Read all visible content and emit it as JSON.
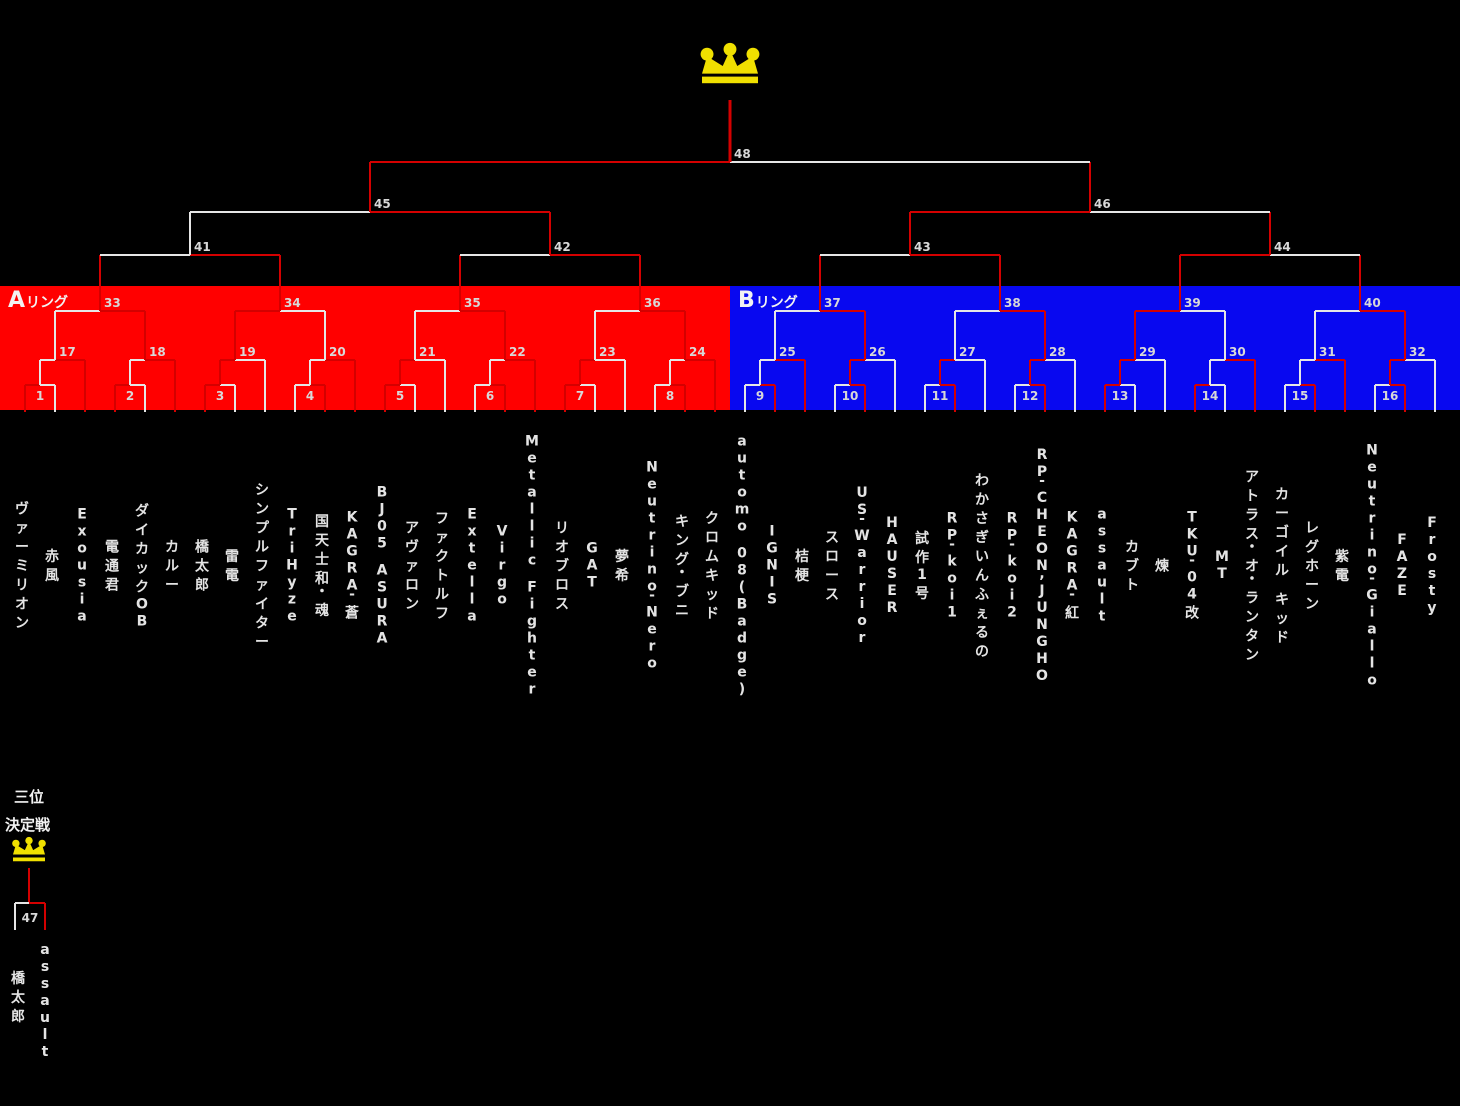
{
  "page": {
    "background": "#000000"
  },
  "colors": {
    "band_a": "#ff0000",
    "band_b": "#0808f0",
    "line_light": "#e6e6e6",
    "line_red": "#d40000",
    "crown_yellow": "#f0e000",
    "name_text": "#e4e4e4",
    "number_text": "#d8d8d8",
    "label_text": "#f2f2f2"
  },
  "rings": [
    {
      "letter": "A",
      "suffix": "リング",
      "groups": [
        {
          "players": [
            "ヴァーミリオン",
            "赤風",
            "Exousia"
          ],
          "red": {
            "r1": "left",
            "r2": "right"
          }
        },
        {
          "players": [
            "電通君",
            "ダイカックOB",
            "カルー"
          ],
          "red": {
            "r1": "left",
            "r2": "right"
          }
        },
        {
          "players": [
            "橋太郎",
            "雷電",
            "シンプルファイター"
          ],
          "red": {
            "r1": "left",
            "r2": "left"
          }
        },
        {
          "players": [
            "TriHyze",
            "国天士和・魂",
            "KAGRA-蒼"
          ],
          "red": {
            "r1": "right",
            "r2": "right"
          }
        },
        {
          "players": [
            "BJ05 ASURA",
            "アヴァロン",
            "ファクトルフ"
          ],
          "red": {
            "r1": "left",
            "r2": "left"
          }
        },
        {
          "players": [
            "Extella",
            "Virgo",
            "Metallic Fighter"
          ],
          "red": {
            "r1": "right",
            "r2": "right"
          }
        },
        {
          "players": [
            "リオブロス",
            "GAT",
            "夢希"
          ],
          "red": {
            "r1": "left",
            "r2": "left"
          }
        },
        {
          "players": [
            "Neutrino-Nero",
            "キング・ブニ",
            "クロムキッド"
          ],
          "red": {
            "r1": "right",
            "r2": "right"
          }
        }
      ]
    },
    {
      "letter": "B",
      "suffix": "リング",
      "groups": [
        {
          "players": [
            "automo 08(Badge)",
            "IGNIS",
            "桔梗"
          ],
          "red": {
            "r1": "right",
            "r2": "right"
          }
        },
        {
          "players": [
            "スロース",
            "US-Warrior",
            "HAUSER"
          ],
          "red": {
            "r1": "right",
            "r2": "left"
          }
        },
        {
          "players": [
            "試作1号",
            "RP-koi1",
            "わかさぎいんふぇるの"
          ],
          "red": {
            "r1": "right",
            "r2": "left"
          }
        },
        {
          "players": [
            "RP-koi2",
            "RP-CHEON,JUNGHO",
            "KAGRA-紅"
          ],
          "red": {
            "r1": "right",
            "r2": "left"
          }
        },
        {
          "players": [
            "assault",
            "カブト",
            "煉"
          ],
          "red": {
            "r1": "left",
            "r2": "left"
          }
        },
        {
          "players": [
            "TKU-04改",
            "MT",
            "アトラス・オ・ランタン"
          ],
          "red": {
            "r1": "left",
            "r2": "right"
          }
        },
        {
          "players": [
            "カーゴイル キッド",
            "レグホーン",
            "紫電"
          ],
          "red": {
            "r1": "right",
            "r2": "right"
          }
        },
        {
          "players": [
            "Neutrino-Giallo",
            "FAZE",
            "Frosty"
          ],
          "red": {
            "r1": "right",
            "r2": "left"
          }
        }
      ]
    }
  ],
  "match_numbers": {
    "round1": [
      1,
      2,
      3,
      4,
      5,
      6,
      7,
      8,
      9,
      10,
      11,
      12,
      13,
      14,
      15,
      16
    ],
    "round2": [
      17,
      18,
      19,
      20,
      21,
      22,
      23,
      24,
      25,
      26,
      27,
      28,
      29,
      30,
      31,
      32
    ],
    "round3": [
      33,
      34,
      35,
      36,
      37,
      38,
      39,
      40
    ],
    "quarterfinals": [
      41,
      42,
      43,
      44
    ],
    "semifinals": [
      45,
      46
    ],
    "final": 48,
    "third_place": 47
  },
  "round3_red": [
    "right",
    "left",
    "right",
    "right",
    "right",
    "right",
    "left",
    "right"
  ],
  "quarterfinals_red": [
    {
      "side": "right",
      "stem": false
    },
    {
      "side": "right",
      "stem": true
    },
    {
      "side": "right",
      "stem": true
    },
    {
      "side": "left",
      "stem": true
    }
  ],
  "semifinals_red": [
    "right",
    "left"
  ],
  "final_red": "left",
  "third_place": {
    "title_line1": "三位",
    "title_line2": "決定戦",
    "players": [
      "橋太郎",
      "assault"
    ],
    "red_side": "right"
  }
}
